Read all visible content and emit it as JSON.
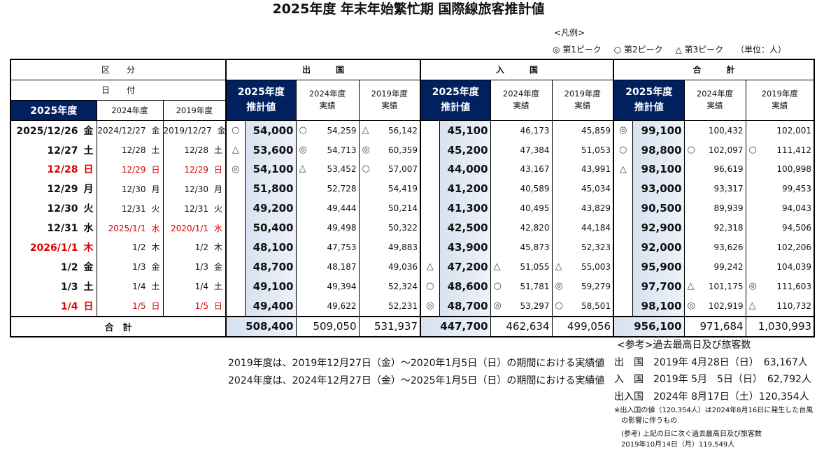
{
  "title": "2025年度 年末年始繁忙期 国際線旅客推計値",
  "legend": {
    "title": "<凡例>",
    "items": [
      "◎ 第1ピーク",
      "○ 第2ピーク",
      "△ 第3ピーク"
    ],
    "unit": "（単位：人）"
  },
  "header": {
    "category": "区　　分",
    "date": "日　　付",
    "fy2025": "2025年度",
    "fy2024": "2024年度",
    "fy2019": "2019年度",
    "departure": "出　　　国",
    "arrival": "入　　　国",
    "total": "合　　　計",
    "est_top": "2025年度",
    "est_bottom": "推計値",
    "act2024_top": "2024年度",
    "act2019_top": "2019年度",
    "act_bottom": "実績"
  },
  "rows": [
    {
      "d25": "2025/12/26",
      "w25": "金",
      "d24": "2024/12/27",
      "w24": "金",
      "d19": "2019/12/27",
      "w19": "金",
      "red": [
        false,
        false,
        false
      ],
      "dep": [
        [
          "○",
          "54,000"
        ],
        [
          "○",
          "54,259"
        ],
        [
          "△",
          "56,142"
        ]
      ],
      "arr": [
        [
          "",
          "45,100"
        ],
        [
          "",
          "46,173"
        ],
        [
          "",
          "45,859"
        ]
      ],
      "tot": [
        [
          "◎",
          "99,100"
        ],
        [
          "",
          "100,432"
        ],
        [
          "",
          "102,001"
        ]
      ]
    },
    {
      "d25": "12/27",
      "w25": "土",
      "d24": "12/28",
      "w24": "土",
      "d19": "12/28",
      "w19": "土",
      "red": [
        false,
        false,
        false
      ],
      "dep": [
        [
          "△",
          "53,600"
        ],
        [
          "◎",
          "54,713"
        ],
        [
          "◎",
          "60,359"
        ]
      ],
      "arr": [
        [
          "",
          "45,200"
        ],
        [
          "",
          "47,384"
        ],
        [
          "",
          "51,053"
        ]
      ],
      "tot": [
        [
          "○",
          "98,800"
        ],
        [
          "○",
          "102,097"
        ],
        [
          "○",
          "111,412"
        ]
      ]
    },
    {
      "d25": "12/28",
      "w25": "日",
      "d24": "12/29",
      "w24": "日",
      "d19": "12/29",
      "w19": "日",
      "red": [
        true,
        true,
        true
      ],
      "dep": [
        [
          "◎",
          "54,100"
        ],
        [
          "△",
          "53,452"
        ],
        [
          "○",
          "57,007"
        ]
      ],
      "arr": [
        [
          "",
          "44,000"
        ],
        [
          "",
          "43,167"
        ],
        [
          "",
          "43,991"
        ]
      ],
      "tot": [
        [
          "△",
          "98,100"
        ],
        [
          "",
          "96,619"
        ],
        [
          "",
          "100,998"
        ]
      ]
    },
    {
      "d25": "12/29",
      "w25": "月",
      "d24": "12/30",
      "w24": "月",
      "d19": "12/30",
      "w19": "月",
      "red": [
        false,
        false,
        false
      ],
      "dep": [
        [
          "",
          "51,800"
        ],
        [
          "",
          "52,728"
        ],
        [
          "",
          "54,419"
        ]
      ],
      "arr": [
        [
          "",
          "41,200"
        ],
        [
          "",
          "40,589"
        ],
        [
          "",
          "45,034"
        ]
      ],
      "tot": [
        [
          "",
          "93,000"
        ],
        [
          "",
          "93,317"
        ],
        [
          "",
          "99,453"
        ]
      ]
    },
    {
      "d25": "12/30",
      "w25": "火",
      "d24": "12/31",
      "w24": "火",
      "d19": "12/31",
      "w19": "火",
      "red": [
        false,
        false,
        false
      ],
      "dep": [
        [
          "",
          "49,200"
        ],
        [
          "",
          "49,444"
        ],
        [
          "",
          "50,214"
        ]
      ],
      "arr": [
        [
          "",
          "41,300"
        ],
        [
          "",
          "40,495"
        ],
        [
          "",
          "43,829"
        ]
      ],
      "tot": [
        [
          "",
          "90,500"
        ],
        [
          "",
          "89,939"
        ],
        [
          "",
          "94,043"
        ]
      ]
    },
    {
      "d25": "12/31",
      "w25": "水",
      "d24": "2025/1/1",
      "w24": "水",
      "d19": "2020/1/1",
      "w19": "水",
      "red": [
        false,
        true,
        true
      ],
      "dep": [
        [
          "",
          "50,400"
        ],
        [
          "",
          "49,498"
        ],
        [
          "",
          "50,322"
        ]
      ],
      "arr": [
        [
          "",
          "42,500"
        ],
        [
          "",
          "42,820"
        ],
        [
          "",
          "44,184"
        ]
      ],
      "tot": [
        [
          "",
          "92,900"
        ],
        [
          "",
          "92,318"
        ],
        [
          "",
          "94,506"
        ]
      ]
    },
    {
      "d25": "2026/1/1",
      "w25": "木",
      "d24": "1/2",
      "w24": "木",
      "d19": "1/2",
      "w19": "木",
      "red": [
        true,
        false,
        false
      ],
      "dep": [
        [
          "",
          "48,100"
        ],
        [
          "",
          "47,753"
        ],
        [
          "",
          "49,883"
        ]
      ],
      "arr": [
        [
          "",
          "43,900"
        ],
        [
          "",
          "45,873"
        ],
        [
          "",
          "52,323"
        ]
      ],
      "tot": [
        [
          "",
          "92,000"
        ],
        [
          "",
          "93,626"
        ],
        [
          "",
          "102,206"
        ]
      ]
    },
    {
      "d25": "1/2",
      "w25": "金",
      "d24": "1/3",
      "w24": "金",
      "d19": "1/3",
      "w19": "金",
      "red": [
        false,
        false,
        false
      ],
      "dep": [
        [
          "",
          "48,700"
        ],
        [
          "",
          "48,187"
        ],
        [
          "",
          "49,036"
        ]
      ],
      "arr": [
        [
          "△",
          "47,200"
        ],
        [
          "△",
          "51,055"
        ],
        [
          "△",
          "55,003"
        ]
      ],
      "tot": [
        [
          "",
          "95,900"
        ],
        [
          "",
          "99,242"
        ],
        [
          "",
          "104,039"
        ]
      ]
    },
    {
      "d25": "1/3",
      "w25": "土",
      "d24": "1/4",
      "w24": "土",
      "d19": "1/4",
      "w19": "土",
      "red": [
        false,
        false,
        false
      ],
      "dep": [
        [
          "",
          "49,100"
        ],
        [
          "",
          "49,394"
        ],
        [
          "",
          "52,324"
        ]
      ],
      "arr": [
        [
          "○",
          "48,600"
        ],
        [
          "○",
          "51,781"
        ],
        [
          "◎",
          "59,279"
        ]
      ],
      "tot": [
        [
          "",
          "97,700"
        ],
        [
          "△",
          "101,175"
        ],
        [
          "◎",
          "111,603"
        ]
      ]
    },
    {
      "d25": "1/4",
      "w25": "日",
      "d24": "1/5",
      "w24": "日",
      "d19": "1/5",
      "w19": "日",
      "red": [
        true,
        true,
        true
      ],
      "dep": [
        [
          "",
          "49,400"
        ],
        [
          "",
          "49,622"
        ],
        [
          "",
          "52,231"
        ]
      ],
      "arr": [
        [
          "◎",
          "48,700"
        ],
        [
          "◎",
          "53,297"
        ],
        [
          "○",
          "58,501"
        ]
      ],
      "tot": [
        [
          "",
          "98,100"
        ],
        [
          "◎",
          "102,919"
        ],
        [
          "△",
          "110,732"
        ]
      ]
    }
  ],
  "totals": {
    "label": "合　計",
    "dep": [
      "508,400",
      "509,050",
      "531,937"
    ],
    "arr": [
      "447,700",
      "462,634",
      "499,056"
    ],
    "tot": [
      "956,100",
      "971,684",
      "1,030,993"
    ]
  },
  "notes": [
    "2019年度は、2019年12月27日（金）～2020年1月5日（日）の期間における実績値",
    "2024年度は、2024年12月27日（金）～2025年1月5日（日）の期間における実績値"
  ],
  "reference": {
    "title": "<参考>過去最高日及び旅客数",
    "records": [
      "出　国　2019年 4月28日（日）　63,167人",
      "入　国　2019年 5月　5日（日）　62,792人",
      "出入国　2024年 8月17日（土）120,354人"
    ],
    "footnotes": [
      "※出入国の値（120,354人）は2024年8月16日に発生した台風",
      "　の影響に伴うもの",
      "(参考) 上記の日に次ぐ過去最高日及び旅客数",
      "2019年10月14日（月）119,549人"
    ]
  },
  "colors": {
    "navy": "#002060",
    "red": "#dd0000",
    "shade": "#dce6f2"
  }
}
